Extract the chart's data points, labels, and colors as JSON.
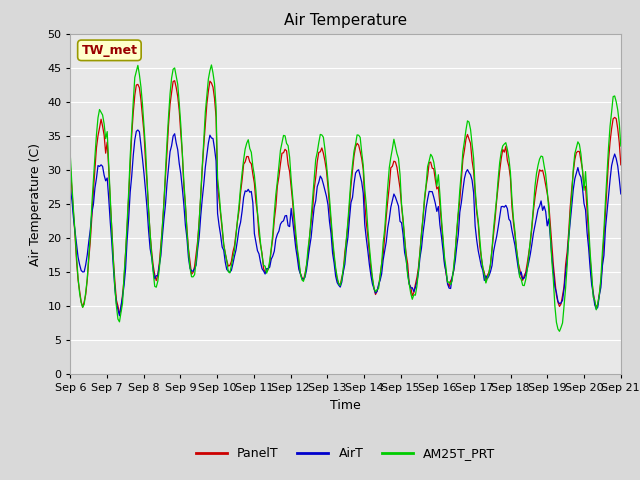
{
  "title": "Air Temperature",
  "ylabel": "Air Temperature (C)",
  "xlabel": "Time",
  "ylim": [
    0,
    50
  ],
  "yticks": [
    0,
    5,
    10,
    15,
    20,
    25,
    30,
    35,
    40,
    45,
    50
  ],
  "annotation_text": "TW_met",
  "legend_labels": [
    "PanelT",
    "AirT",
    "AM25T_PRT"
  ],
  "legend_colors": [
    "#cc0000",
    "#0000cc",
    "#00cc00"
  ],
  "bg_color": "#d9d9d9",
  "plot_bg_color": "#e8e8e8",
  "xtick_labels": [
    "Sep 6",
    "Sep 7",
    "Sep 8",
    "Sep 9",
    "Sep 10",
    "Sep 11",
    "Sep 12",
    "Sep 13",
    "Sep 14",
    "Sep 15",
    "Sep 16",
    "Sep 17",
    "Sep 18",
    "Sep 19",
    "Sep 20",
    "Sep 21"
  ],
  "title_fontsize": 11,
  "axis_fontsize": 9,
  "tick_fontsize": 8,
  "daily_max_r": [
    37,
    43,
    43,
    43,
    32,
    33,
    33,
    34,
    31,
    31,
    35,
    33,
    30,
    33,
    38
  ],
  "daily_min_r": [
    10,
    9,
    14,
    15,
    16,
    15,
    14,
    13,
    12,
    12,
    13,
    14,
    14,
    10,
    10
  ],
  "daily_max_b": [
    31,
    36,
    35,
    35,
    27,
    23,
    29,
    30,
    26,
    27,
    30,
    25,
    25,
    30,
    32
  ],
  "daily_min_b": [
    15,
    9,
    14,
    15,
    15,
    15,
    14,
    13,
    12,
    12,
    13,
    14,
    14,
    10,
    10
  ],
  "daily_max_g": [
    39,
    45,
    45,
    45,
    34,
    35,
    35,
    35,
    34,
    32,
    37,
    34,
    32,
    34,
    41
  ],
  "daily_min_g": [
    10,
    8,
    13,
    14,
    15,
    15,
    14,
    13,
    12,
    11,
    13,
    14,
    13,
    6,
    10
  ]
}
